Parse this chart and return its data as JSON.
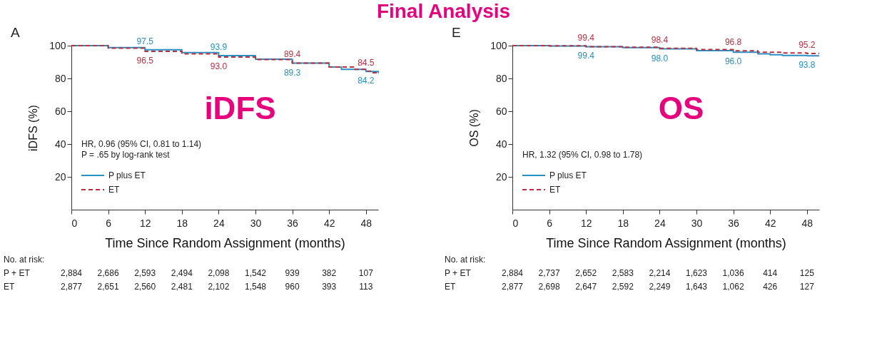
{
  "chart_data": [
    {
      "type": "step",
      "title": "Final Analysis",
      "xlabel": "Time Since Random Assignment (months)",
      "ylabel": "iDFS (%)",
      "xlim": [
        0,
        50
      ],
      "xticks": [
        0,
        6,
        12,
        18,
        24,
        30,
        36,
        42,
        48
      ],
      "ylim": [
        0,
        100
      ],
      "yticks": [
        20,
        40,
        60,
        80,
        100
      ],
      "legend": "bottom left",
      "series": [
        {
          "name": "P plus ET",
          "color": "#2a8fc1",
          "line_style": "solid",
          "x": [
            0,
            6,
            12,
            18,
            24,
            30,
            36,
            42,
            44,
            48,
            50
          ],
          "values": [
            100,
            98.8,
            97.5,
            95.8,
            93.9,
            91.7,
            89.3,
            87,
            85.5,
            84.2,
            83.3
          ]
        },
        {
          "name": "ET",
          "color": "#b8303f",
          "line_style": "dashed",
          "x": [
            0,
            6,
            12,
            18,
            24,
            30,
            36,
            42,
            46,
            48,
            49,
            50
          ],
          "values": [
            100,
            98.5,
            96.5,
            95,
            93.0,
            91.5,
            89.4,
            87,
            85.5,
            84.5,
            83.5,
            82.5
          ]
        }
      ],
      "annotations": [
        "A",
        "iDFS",
        "HR, 0.96 (95%  CI, 0.81 to 1.14)",
        "P = .65 by log-rank test",
        {
          "text": "97.5",
          "x": 12,
          "y": 97.5
        },
        {
          "text": "96.5",
          "x": 12,
          "y": 96.5
        },
        {
          "text": "93.9",
          "x": 24,
          "y": 93.9
        },
        {
          "text": "93.0",
          "x": 24,
          "y": 93.0
        },
        {
          "text": "89.4",
          "x": 36,
          "y": 89.4
        },
        {
          "text": "89.3",
          "x": 36,
          "y": 89.3
        },
        {
          "text": "84.5",
          "x": 48,
          "y": 84.5
        },
        {
          "text": "84.2",
          "x": 48,
          "y": 84.2
        },
        "No. at risk:",
        "P + ET",
        "ET",
        "2,884",
        "2,686",
        "2,593",
        "2,494",
        "2,098",
        "1,542",
        "939",
        "382",
        "107",
        "2,877",
        "2,651",
        "2,560",
        "2,481",
        "2,102",
        "1,548",
        "960",
        "393",
        "113"
      ]
    },
    {
      "type": "step",
      "xlabel": "Time Since Random Assignment (months)",
      "ylabel": "OS (%)",
      "xlim": [
        0,
        50
      ],
      "xticks": [
        0,
        6,
        12,
        18,
        24,
        30,
        36,
        42,
        48
      ],
      "ylim": [
        0,
        100
      ],
      "yticks": [
        20,
        40,
        60,
        80,
        100
      ],
      "legend": "bottom left",
      "series": [
        {
          "name": "P plus ET",
          "color": "#2a8fc1",
          "line_style": "solid",
          "x": [
            0,
            6,
            12,
            18,
            24,
            30,
            36,
            40,
            42,
            44,
            48,
            50
          ],
          "values": [
            100,
            99.8,
            99.4,
            98.8,
            98.0,
            97.0,
            96.0,
            95,
            94.5,
            94,
            93.8,
            93.8
          ]
        },
        {
          "name": "ET",
          "color": "#b8303f",
          "line_style": "dashed",
          "x": [
            0,
            6,
            12,
            18,
            24,
            30,
            36,
            40,
            44,
            48,
            50
          ],
          "values": [
            100,
            99.9,
            99.4,
            99,
            98.4,
            97.6,
            96.8,
            96,
            95.5,
            95.2,
            95.2
          ]
        }
      ],
      "annotations": [
        "E",
        "OS",
        "HR, 1.32 (95% CI, 0.98 to 1.78)",
        {
          "text": "99.4",
          "x": 12,
          "y": 99.4
        },
        {
          "text": "99.4",
          "x": 12,
          "y": 99.4
        },
        {
          "text": "98.0",
          "x": 24,
          "y": 98.0
        },
        {
          "text": "98.4",
          "x": 24,
          "y": 98.4
        },
        {
          "text": "96.0",
          "x": 36,
          "y": 96.0
        },
        {
          "text": "96.8",
          "x": 36,
          "y": 96.8
        },
        {
          "text": "93.8",
          "x": 48,
          "y": 93.8
        },
        {
          "text": "95.2",
          "x": 48,
          "y": 95.2
        },
        "No. at risk:",
        "P + ET",
        "ET",
        "2,884",
        "2,737",
        "2,652",
        "2,583",
        "2,214",
        "1,623",
        "1,036",
        "414",
        "125",
        "2,877",
        "2,698",
        "2,647",
        "2,592",
        "2,249",
        "1,643",
        "1,062",
        "426",
        "127"
      ]
    }
  ]
}
